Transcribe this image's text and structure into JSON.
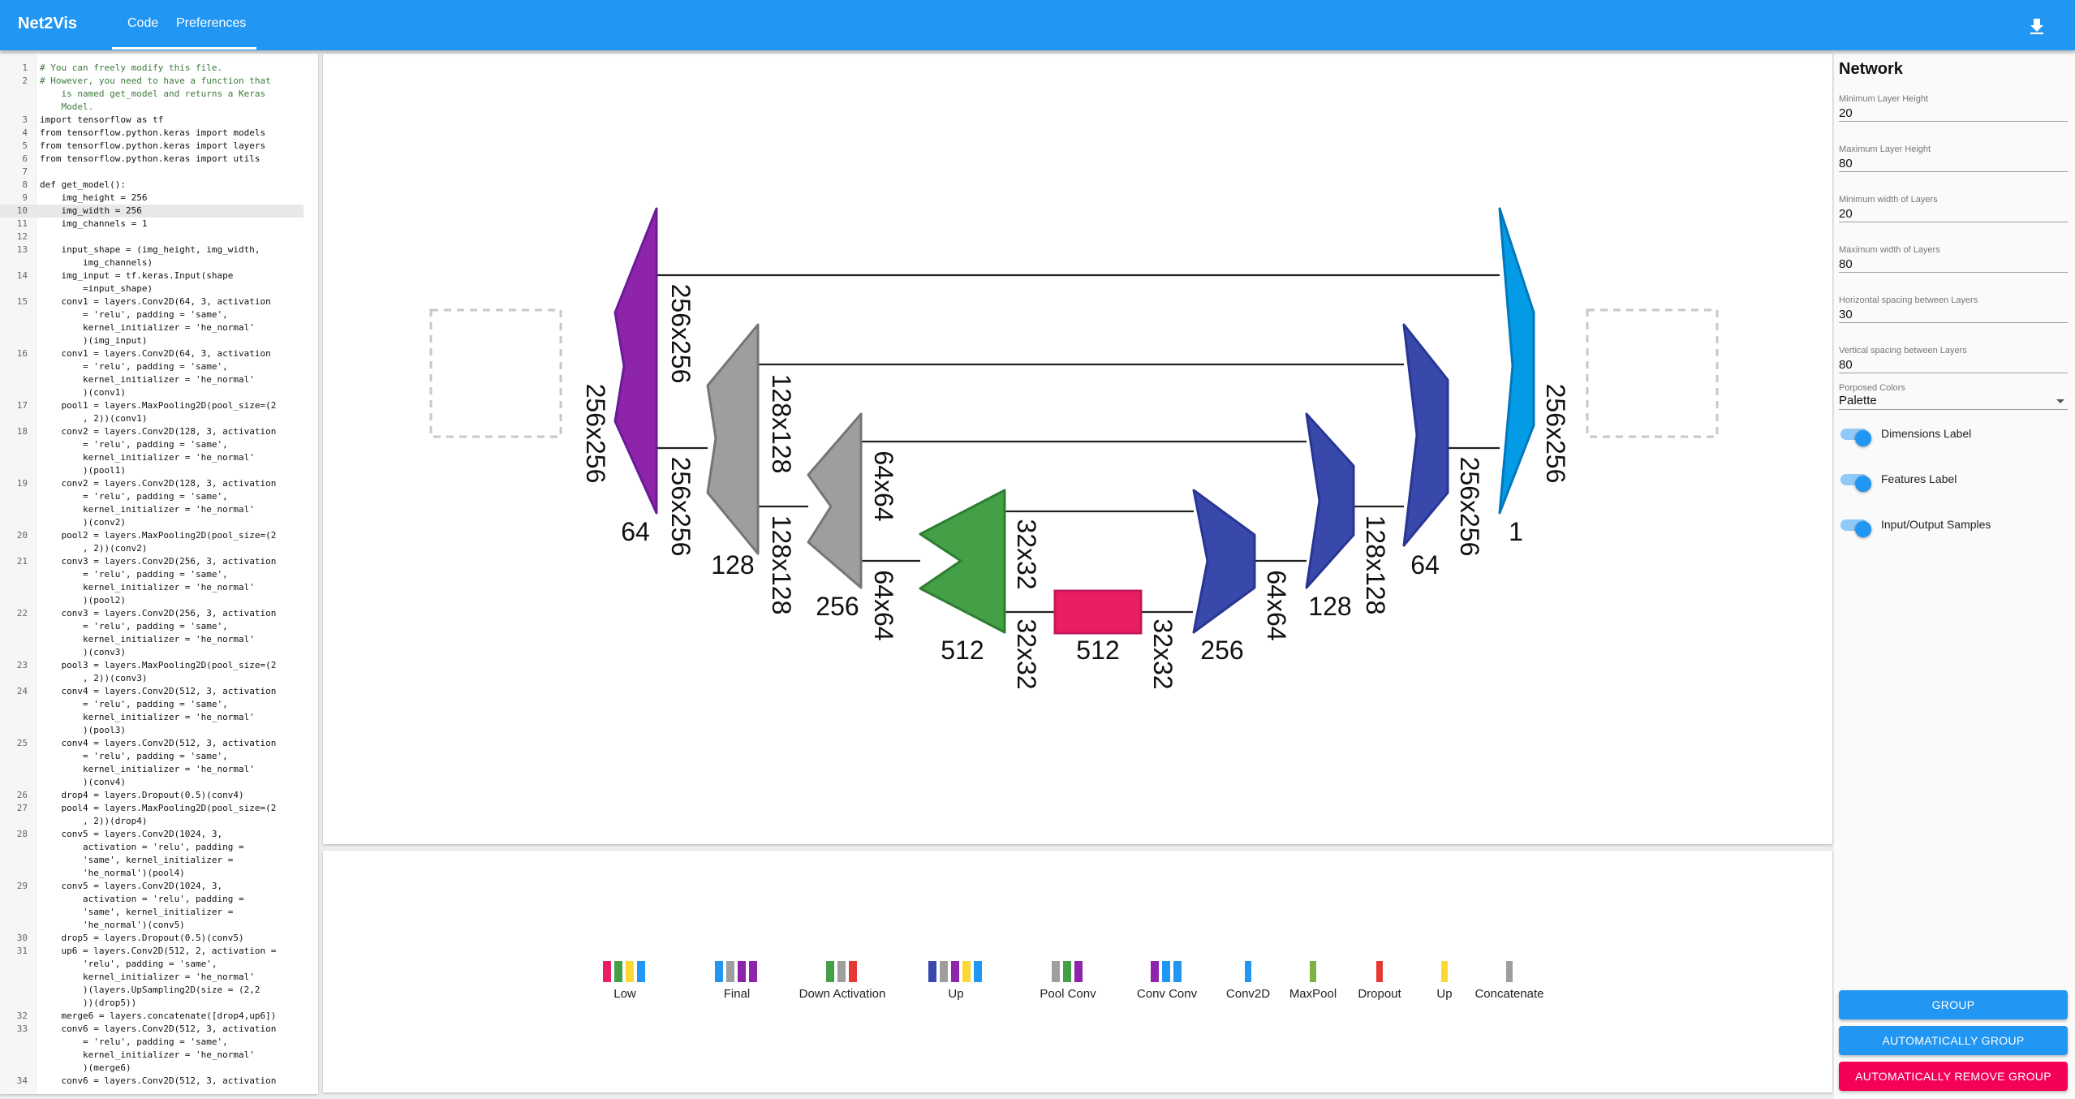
{
  "app": {
    "title": "Net2Vis",
    "tabs": [
      {
        "label": "Code"
      },
      {
        "label": "Preferences"
      }
    ],
    "download_icon": "download-icon"
  },
  "code": {
    "lines": [
      {
        "n": "1",
        "t": "# You can freely modify this file.",
        "c": true
      },
      {
        "n": "2",
        "t": "# However, you need to have a function that",
        "c": true
      },
      {
        "n": "",
        "t": "    is named get_model and returns a Keras",
        "c": true
      },
      {
        "n": "",
        "t": "    Model.",
        "c": true
      },
      {
        "n": "3",
        "t": "import tensorflow as tf"
      },
      {
        "n": "4",
        "t": "from tensorflow.python.keras import models"
      },
      {
        "n": "5",
        "t": "from tensorflow.python.keras import layers"
      },
      {
        "n": "6",
        "t": "from tensorflow.python.keras import utils"
      },
      {
        "n": "7",
        "t": ""
      },
      {
        "n": "8",
        "t": "def get_model():"
      },
      {
        "n": "9",
        "t": "    img_height = 256"
      },
      {
        "n": "10",
        "t": "    img_width = 256"
      },
      {
        "n": "11",
        "t": "    img_channels = 1"
      },
      {
        "n": "12",
        "t": ""
      },
      {
        "n": "13",
        "t": "    input_shape = (img_height, img_width,"
      },
      {
        "n": "",
        "t": "        img_channels)"
      },
      {
        "n": "14",
        "t": "    img_input = tf.keras.Input(shape"
      },
      {
        "n": "",
        "t": "        =input_shape)"
      },
      {
        "n": "15",
        "t": "    conv1 = layers.Conv2D(64, 3, activation"
      },
      {
        "n": "",
        "t": "        = 'relu', padding = 'same',"
      },
      {
        "n": "",
        "t": "        kernel_initializer = 'he_normal'"
      },
      {
        "n": "",
        "t": "        )(img_input)"
      },
      {
        "n": "16",
        "t": "    conv1 = layers.Conv2D(64, 3, activation"
      },
      {
        "n": "",
        "t": "        = 'relu', padding = 'same',"
      },
      {
        "n": "",
        "t": "        kernel_initializer = 'he_normal'"
      },
      {
        "n": "",
        "t": "        )(conv1)"
      },
      {
        "n": "17",
        "t": "    pool1 = layers.MaxPooling2D(pool_size=(2"
      },
      {
        "n": "",
        "t": "        , 2))(conv1)"
      },
      {
        "n": "18",
        "t": "    conv2 = layers.Conv2D(128, 3, activation"
      },
      {
        "n": "",
        "t": "        = 'relu', padding = 'same',"
      },
      {
        "n": "",
        "t": "        kernel_initializer = 'he_normal'"
      },
      {
        "n": "",
        "t": "        )(pool1)"
      },
      {
        "n": "19",
        "t": "    conv2 = layers.Conv2D(128, 3, activation"
      },
      {
        "n": "",
        "t": "        = 'relu', padding = 'same',"
      },
      {
        "n": "",
        "t": "        kernel_initializer = 'he_normal'"
      },
      {
        "n": "",
        "t": "        )(conv2)"
      },
      {
        "n": "20",
        "t": "    pool2 = layers.MaxPooling2D(pool_size=(2"
      },
      {
        "n": "",
        "t": "        , 2))(conv2)"
      },
      {
        "n": "21",
        "t": "    conv3 = layers.Conv2D(256, 3, activation"
      },
      {
        "n": "",
        "t": "        = 'relu', padding = 'same',"
      },
      {
        "n": "",
        "t": "        kernel_initializer = 'he_normal'"
      },
      {
        "n": "",
        "t": "        )(pool2)"
      },
      {
        "n": "22",
        "t": "    conv3 = layers.Conv2D(256, 3, activation"
      },
      {
        "n": "",
        "t": "        = 'relu', padding = 'same',"
      },
      {
        "n": "",
        "t": "        kernel_initializer = 'he_normal'"
      },
      {
        "n": "",
        "t": "        )(conv3)"
      },
      {
        "n": "23",
        "t": "    pool3 = layers.MaxPooling2D(pool_size=(2"
      },
      {
        "n": "",
        "t": "        , 2))(conv3)"
      },
      {
        "n": "24",
        "t": "    conv4 = layers.Conv2D(512, 3, activation"
      },
      {
        "n": "",
        "t": "        = 'relu', padding = 'same',"
      },
      {
        "n": "",
        "t": "        kernel_initializer = 'he_normal'"
      },
      {
        "n": "",
        "t": "        )(pool3)"
      },
      {
        "n": "25",
        "t": "    conv4 = layers.Conv2D(512, 3, activation"
      },
      {
        "n": "",
        "t": "        = 'relu', padding = 'same',"
      },
      {
        "n": "",
        "t": "        kernel_initializer = 'he_normal'"
      },
      {
        "n": "",
        "t": "        )(conv4)"
      },
      {
        "n": "26",
        "t": "    drop4 = layers.Dropout(0.5)(conv4)"
      },
      {
        "n": "27",
        "t": "    pool4 = layers.MaxPooling2D(pool_size=(2"
      },
      {
        "n": "",
        "t": "        , 2))(drop4)"
      },
      {
        "n": "28",
        "t": "    conv5 = layers.Conv2D(1024, 3,"
      },
      {
        "n": "",
        "t": "        activation = 'relu', padding ="
      },
      {
        "n": "",
        "t": "        'same', kernel_initializer ="
      },
      {
        "n": "",
        "t": "        'he_normal')(pool4)"
      },
      {
        "n": "29",
        "t": "    conv5 = layers.Conv2D(1024, 3,"
      },
      {
        "n": "",
        "t": "        activation = 'relu', padding ="
      },
      {
        "n": "",
        "t": "        'same', kernel_initializer ="
      },
      {
        "n": "",
        "t": "        'he_normal')(conv5)"
      },
      {
        "n": "30",
        "t": "    drop5 = layers.Dropout(0.5)(conv5)"
      },
      {
        "n": "31",
        "t": "    up6 = layers.Conv2D(512, 2, activation ="
      },
      {
        "n": "",
        "t": "        'relu', padding = 'same',"
      },
      {
        "n": "",
        "t": "        kernel_initializer = 'he_normal'"
      },
      {
        "n": "",
        "t": "        )(layers.UpSampling2D(size = (2,2"
      },
      {
        "n": "",
        "t": "        ))(drop5))"
      },
      {
        "n": "32",
        "t": "    merge6 = layers.concatenate([drop4,up6])"
      },
      {
        "n": "33",
        "t": "    conv6 = layers.Conv2D(512, 3, activation"
      },
      {
        "n": "",
        "t": "        = 'relu', padding = 'same',"
      },
      {
        "n": "",
        "t": "        kernel_initializer = 'he_normal'"
      },
      {
        "n": "",
        "t": "        )(merge6)"
      },
      {
        "n": "34",
        "t": "    conv6 = layers.Conv2D(512, 3, activation"
      }
    ]
  },
  "graph": {
    "layers": [
      {
        "features": "64",
        "dim_in": "256x256",
        "dim_out": "256x256",
        "color": "#8e24aa"
      },
      {
        "features": "128",
        "dim_in": "256x256",
        "dim_out": "128x128",
        "color": "#9e9e9e"
      },
      {
        "features": "256",
        "dim_in": "128x128",
        "dim_out": "64x64",
        "color": "#9e9e9e"
      },
      {
        "features": "512",
        "dim_in": "64x64",
        "dim_out": "32x32",
        "color": "#43a047"
      },
      {
        "features": "512",
        "dim_in": "32x32",
        "dim_out": "32x32",
        "color": "#e91e63"
      },
      {
        "features": "256",
        "dim_out": "64x64",
        "color": "#3949ab"
      },
      {
        "features": "128",
        "dim_out": "128x128",
        "color": "#3949ab"
      },
      {
        "features": "64",
        "dim_out": "256x256",
        "color": "#3949ab"
      },
      {
        "features": "1",
        "dim_out": "256x256",
        "color": "#039be5"
      }
    ]
  },
  "legend": {
    "items": [
      {
        "label": "Low",
        "colors": [
          "#e91e63",
          "#43a047",
          "#fdd835",
          "#2196f3"
        ]
      },
      {
        "label": "Final",
        "colors": [
          "#2196f3",
          "#9e9e9e",
          "#8e24aa",
          "#8e24aa"
        ]
      },
      {
        "label": "Down Activation",
        "colors": [
          "#43a047",
          "#9e9e9e",
          "#e53935"
        ]
      },
      {
        "label": "Up",
        "colors": [
          "#3949ab",
          "#9e9e9e",
          "#8e24aa",
          "#fdd835",
          "#2196f3"
        ]
      },
      {
        "label": "Pool Conv",
        "colors": [
          "#9e9e9e",
          "#43a047",
          "#8e24aa"
        ]
      },
      {
        "label": "Conv Conv",
        "colors": [
          "#8e24aa",
          "#2196f3",
          "#2196f3"
        ]
      },
      {
        "label": "Conv2D",
        "colors": [
          "#2196f3"
        ]
      },
      {
        "label": "MaxPool",
        "colors": [
          "#7cb342"
        ]
      },
      {
        "label": "Dropout",
        "colors": [
          "#e53935"
        ]
      },
      {
        "label": "Up",
        "colors": [
          "#fdd835"
        ]
      },
      {
        "label": "Concatenate",
        "colors": [
          "#9e9e9e"
        ]
      }
    ]
  },
  "network": {
    "title": "Network",
    "fields": [
      {
        "label": "Minimum Layer Height",
        "value": "20"
      },
      {
        "label": "Maximum Layer Height",
        "value": "80"
      },
      {
        "label": "Minimum width of Layers",
        "value": "20"
      },
      {
        "label": "Maximum width of Layers",
        "value": "80"
      },
      {
        "label": "Horizontal spacing between Layers",
        "value": "30"
      },
      {
        "label": "Vertical spacing between Layers",
        "value": "80"
      }
    ],
    "colors_select": {
      "label": "Porposed Colors",
      "value": "Palette"
    },
    "toggles": [
      {
        "label": "Dimensions Label",
        "on": true
      },
      {
        "label": "Features Label",
        "on": true
      },
      {
        "label": "Input/Output Samples",
        "on": true
      }
    ],
    "buttons": [
      {
        "label": "GROUP",
        "color": "#2196f3"
      },
      {
        "label": "AUTOMATICALLY GROUP",
        "color": "#2196f3"
      },
      {
        "label": "AUTOMATICALLY REMOVE GROUP",
        "color": "#f50057"
      }
    ]
  }
}
